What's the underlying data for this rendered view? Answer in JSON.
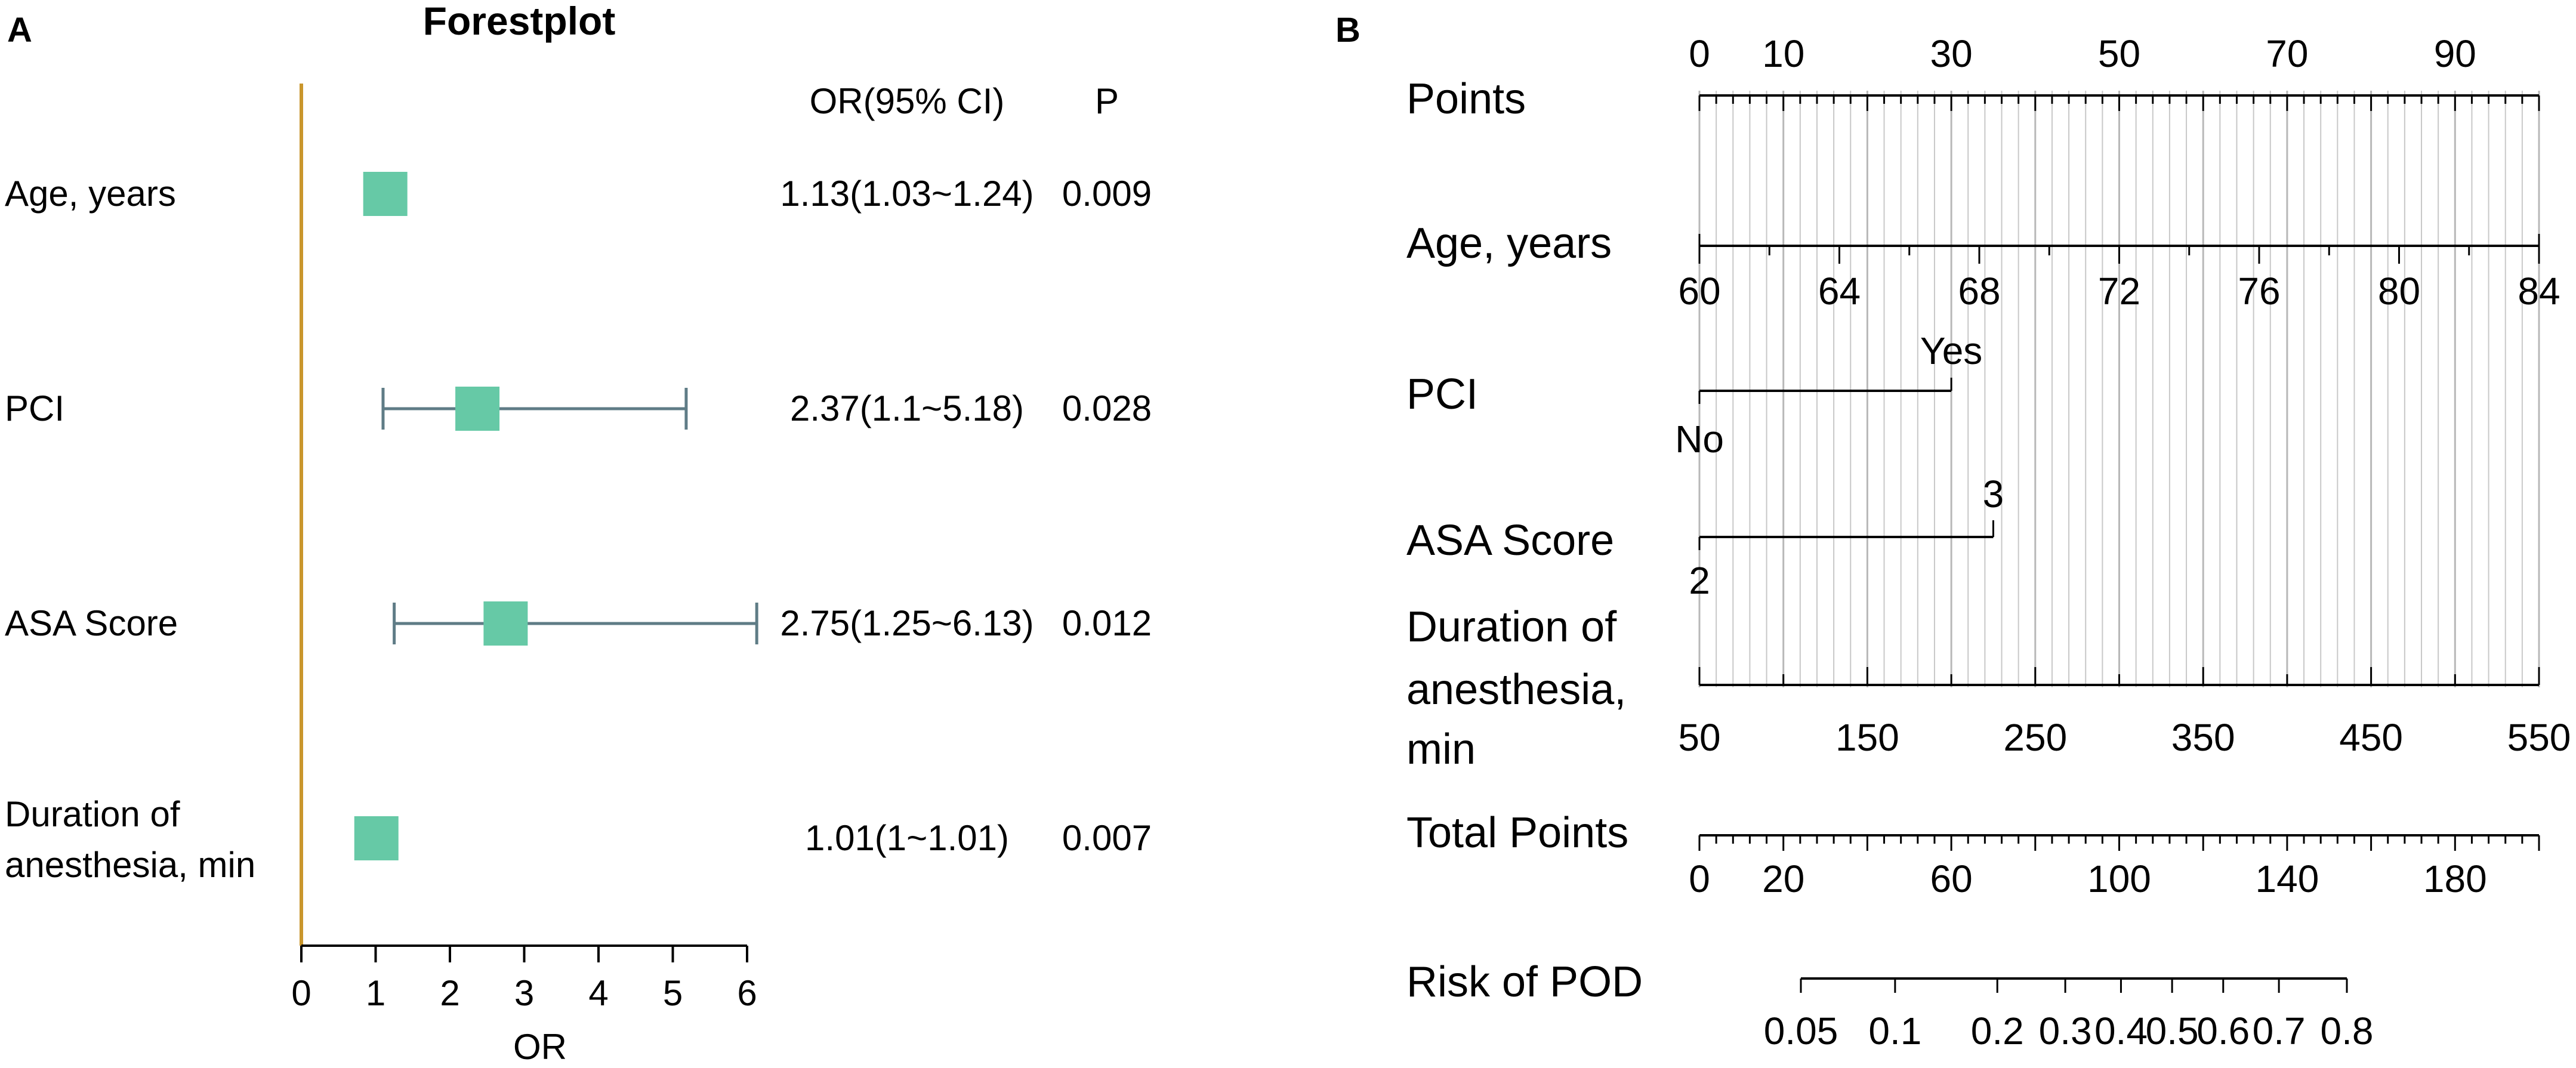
{
  "colors": {
    "axis": "#c9962c",
    "box": "#66c9a6",
    "whisker": "#5f7c86",
    "text": "#000000",
    "grid": "#c8c8c8",
    "gridMajor": "#b8b8b8",
    "line": "#000000"
  },
  "panel_a": {
    "letter": "A",
    "title": "Forestplot",
    "or_header": "OR(95% CI)",
    "p_header": "P",
    "x_label": "OR",
    "ticks": [
      "0",
      "1",
      "2",
      "3",
      "4",
      "5",
      "6"
    ]
  },
  "panel_b": {
    "letter": "B",
    "points_label": "Points",
    "points_ticks": [
      "0",
      "10",
      "30",
      "50",
      "70",
      "90"
    ],
    "age_label": "Age, years",
    "age_ticks": [
      "60",
      "64",
      "68",
      "72",
      "76",
      "80",
      "84"
    ],
    "pci_label": "PCI",
    "pci_yes": "Yes",
    "pci_no": "No",
    "asa_label": "ASA Score",
    "asa_high": "3",
    "asa_low": "2",
    "dur_label": [
      "Duration of",
      "anesthesia,",
      "min"
    ],
    "dur_ticks": [
      "50",
      "150",
      "250",
      "350",
      "450",
      "550"
    ],
    "total_label": "Total Points",
    "total_ticks": [
      "0",
      "20",
      "60",
      "100",
      "140",
      "180"
    ],
    "risk_label": "Risk of POD",
    "risk_ticks": [
      "0.05",
      "0.1",
      "0.2",
      "0.3",
      "0.4",
      "0.5",
      "0.6",
      "0.7",
      "0.8"
    ]
  },
  "chart_data": [
    {
      "type": "forest",
      "title": "Forestplot",
      "xlabel": "OR",
      "xlim": [
        0,
        6
      ],
      "ref_line": 0,
      "rows": [
        {
          "label": [
            "Age, years"
          ],
          "or": 1.13,
          "lo": 1.03,
          "hi": 1.24,
          "ci_text": "1.13(1.03~1.24)",
          "p": "0.009"
        },
        {
          "label": [
            "PCI"
          ],
          "or": 2.37,
          "lo": 1.1,
          "hi": 5.18,
          "ci_text": "2.37(1.1~5.18)",
          "p": "0.028"
        },
        {
          "label": [
            "ASA Score"
          ],
          "or": 2.75,
          "lo": 1.25,
          "hi": 6.13,
          "ci_text": "2.75(1.25~6.13)",
          "p": "0.012"
        },
        {
          "label": [
            "Duration of",
            "anesthesia, min"
          ],
          "or": 1.01,
          "lo": 1.0,
          "hi": 1.01,
          "ci_text": "1.01(1~1.01)",
          "p": "0.007"
        }
      ]
    },
    {
      "type": "nomogram",
      "points_range": [
        0,
        100
      ],
      "age_range": [
        60,
        84
      ],
      "age_points_max": 100,
      "pci_yes_points": 30,
      "asa3_points": 35,
      "duration_range": [
        50,
        550
      ],
      "duration_points_max": 100,
      "total_points_range": [
        0,
        200
      ],
      "risk_range": [
        0.05,
        0.8
      ]
    }
  ]
}
